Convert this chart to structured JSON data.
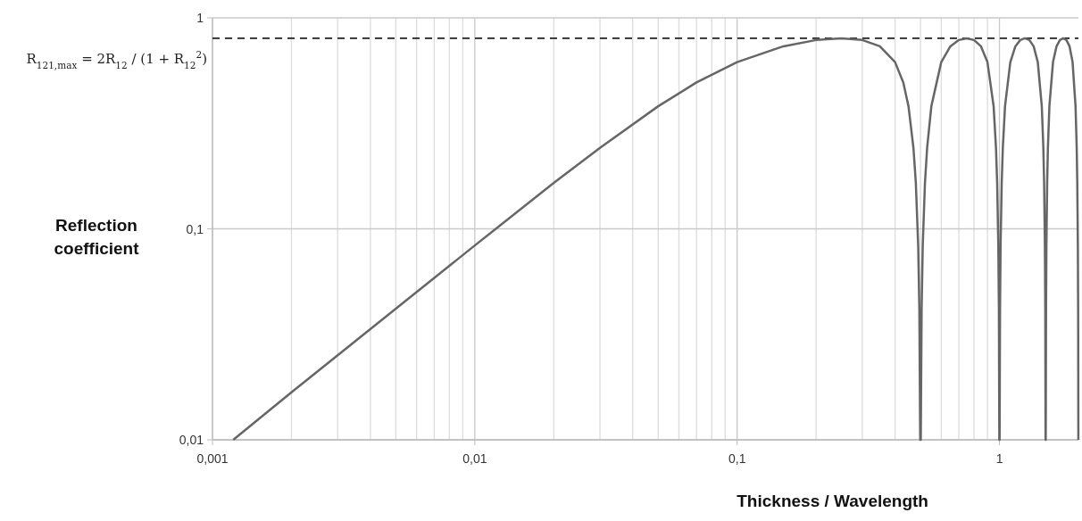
{
  "chart_data": {
    "type": "line",
    "xlabel": "Thickness / Wavelength",
    "ylabel": "Reflection coefficient",
    "log": "xy",
    "grid": true,
    "marker": "none",
    "line_style": "solid",
    "xlim": [
      0.001,
      2
    ],
    "ylim": [
      0.01,
      1
    ],
    "xticks": [
      {
        "value": 0.001,
        "label": "0,001"
      },
      {
        "value": 0.002,
        "label": null
      },
      {
        "value": 0.003,
        "label": null
      },
      {
        "value": 0.004,
        "label": null
      },
      {
        "value": 0.005,
        "label": null
      },
      {
        "value": 0.006,
        "label": null
      },
      {
        "value": 0.007,
        "label": null
      },
      {
        "value": 0.008,
        "label": null
      },
      {
        "value": 0.009,
        "label": null
      },
      {
        "value": 0.01,
        "label": "0,01"
      },
      {
        "value": 0.02,
        "label": null
      },
      {
        "value": 0.03,
        "label": null
      },
      {
        "value": 0.04,
        "label": null
      },
      {
        "value": 0.05,
        "label": null
      },
      {
        "value": 0.06,
        "label": null
      },
      {
        "value": 0.07,
        "label": null
      },
      {
        "value": 0.08,
        "label": null
      },
      {
        "value": 0.09,
        "label": null
      },
      {
        "value": 0.1,
        "label": "0,1"
      },
      {
        "value": 0.2,
        "label": null
      },
      {
        "value": 0.3,
        "label": null
      },
      {
        "value": 0.4,
        "label": null
      },
      {
        "value": 0.5,
        "label": null
      },
      {
        "value": 0.6,
        "label": null
      },
      {
        "value": 0.7,
        "label": null
      },
      {
        "value": 0.8,
        "label": null
      },
      {
        "value": 0.9,
        "label": null
      },
      {
        "value": 1,
        "label": "1"
      }
    ],
    "yticks": [
      {
        "value": 0.01,
        "label": "0,01"
      },
      {
        "value": 0.1,
        "label": "0,1"
      },
      1
    ],
    "ref_lines": [
      {
        "axis": "y",
        "value": 0.8,
        "label": "R$_{121,max}$ = 2R$_{12}$ / (1 + R$_{12}$$^{2}$)",
        "color": "#222222",
        "line_style": "dashed"
      }
    ],
    "series": [
      {
        "color": "#666666",
        "x": [
          0.0012,
          0.002,
          0.005,
          0.01,
          0.02,
          0.03,
          0.05,
          0.07,
          0.1,
          0.15,
          0.2,
          0.25,
          0.3,
          0.35,
          0.4,
          0.43,
          0.45,
          0.47,
          0.48,
          0.49,
          0.495,
          0.4988,
          0.5012,
          0.505,
          0.51,
          0.52,
          0.53,
          0.55,
          0.6,
          0.65,
          0.7,
          0.75,
          0.8,
          0.85,
          0.9,
          0.95,
          0.97,
          0.98,
          0.99,
          0.995,
          0.9988,
          1.0012,
          1.005,
          1.01,
          1.02,
          1.03,
          1.05,
          1.1,
          1.15,
          1.2,
          1.25,
          1.3,
          1.35,
          1.4,
          1.45,
          1.47,
          1.48,
          1.49,
          1.495,
          1.4988,
          1.5012,
          1.505,
          1.51,
          1.52,
          1.53,
          1.55,
          1.6,
          1.65,
          1.7,
          1.75,
          1.8,
          1.85,
          1.9,
          1.95,
          1.97,
          1.98,
          1.99,
          1.995,
          1.9988
        ],
        "values": [
          0.01,
          0.0168,
          0.0418,
          0.0834,
          0.165,
          0.242,
          0.381,
          0.494,
          0.617,
          0.733,
          0.785,
          0.8,
          0.785,
          0.733,
          0.617,
          0.494,
          0.381,
          0.242,
          0.165,
          0.0834,
          0.0418,
          0.01,
          0.01,
          0.0418,
          0.0834,
          0.165,
          0.242,
          0.381,
          0.617,
          0.733,
          0.785,
          0.8,
          0.785,
          0.733,
          0.617,
          0.381,
          0.242,
          0.165,
          0.0834,
          0.0418,
          0.01,
          0.01,
          0.0418,
          0.0834,
          0.165,
          0.242,
          0.381,
          0.617,
          0.733,
          0.785,
          0.8,
          0.785,
          0.733,
          0.617,
          0.381,
          0.242,
          0.165,
          0.0834,
          0.0418,
          0.01,
          0.01,
          0.0418,
          0.0834,
          0.165,
          0.242,
          0.381,
          0.617,
          0.733,
          0.785,
          0.8,
          0.785,
          0.733,
          0.617,
          0.381,
          0.242,
          0.165,
          0.0834,
          0.0418,
          0.01
        ]
      }
    ]
  }
}
